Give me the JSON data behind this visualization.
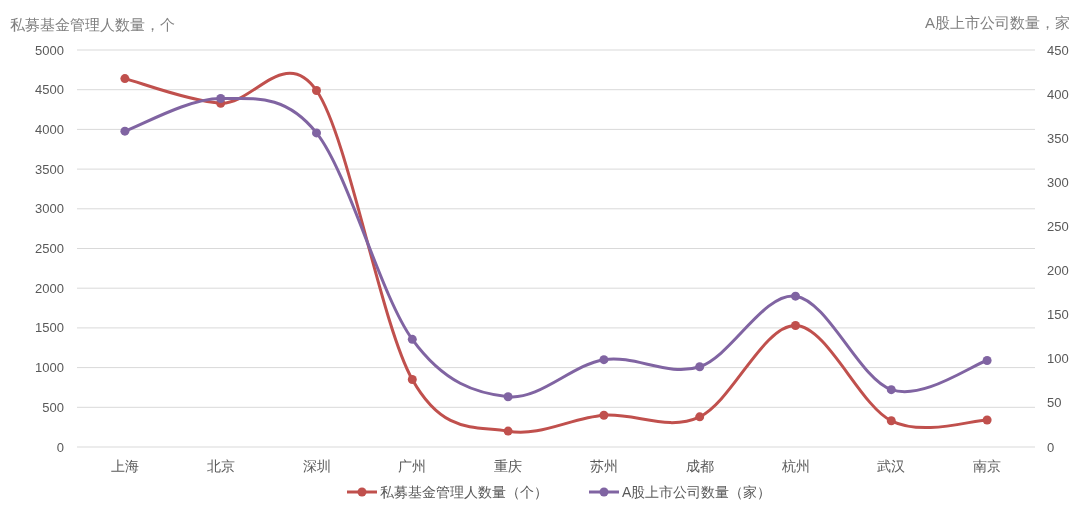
{
  "chart_data": {
    "type": "line",
    "ylabel": "私募基金管理人数量，个",
    "y2label": "A股上市公司数量，家",
    "categories": [
      "上海",
      "北京",
      "深圳",
      "广州",
      "重庆",
      "苏州",
      "成都",
      "杭州",
      "武汉",
      "南京"
    ],
    "series": [
      {
        "name": "私募基金管理人数量（个）",
        "color": "#c0504d",
        "values": [
          4640,
          4330,
          4490,
          850,
          200,
          400,
          380,
          1530,
          330,
          340
        ]
      },
      {
        "name": "A股上市公司数量（家）",
        "color": "#8064a2",
        "axis": "y2",
        "values": [
          358,
          395,
          356,
          122,
          57,
          99,
          91,
          171,
          65,
          98
        ]
      }
    ],
    "ylim": [
      0,
      5000
    ],
    "yticks": [
      0,
      500,
      1000,
      1500,
      2000,
      2500,
      3000,
      3500,
      4000,
      4500,
      5000
    ],
    "y2lim": [
      0,
      450
    ],
    "y2ticks": [
      0,
      50,
      100,
      150,
      200,
      250,
      300,
      350,
      400,
      450
    ],
    "grid": "y",
    "legend": "bottom",
    "marker": "circle",
    "line_style": "solid"
  }
}
